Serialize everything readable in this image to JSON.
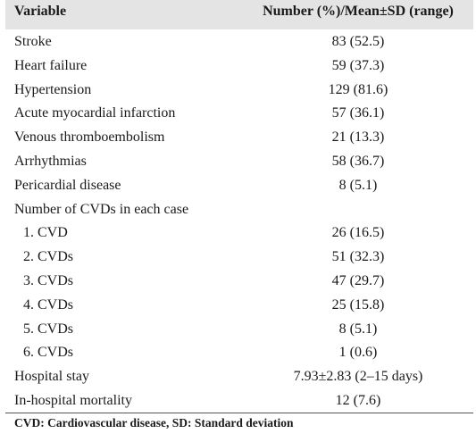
{
  "table": {
    "columns": [
      "Variable",
      "Number (%)/Mean±SD (range)"
    ],
    "rows": [
      [
        "Stroke",
        "83 (52.5)"
      ],
      [
        "Heart failure",
        "59 (37.3)"
      ],
      [
        "Hypertension",
        "129 (81.6)"
      ],
      [
        "Acute myocardial infarction",
        "57 (36.1)"
      ],
      [
        "Venous thromboembolism",
        "21 (13.3)"
      ],
      [
        "Arrhythmias",
        "58 (36.7)"
      ],
      [
        "Pericardial disease",
        "8 (5.1)"
      ],
      {
        "label": "Number of CVDs in each case",
        "subrows": [
          [
            "1. CVD",
            "26 (16.5)"
          ],
          [
            "2. CVDs",
            "51 (32.3)"
          ],
          [
            "3. CVDs",
            "47 (29.7)"
          ],
          [
            "4. CVDs",
            "25 (15.8)"
          ],
          [
            "5. CVDs",
            "8 (5.1)"
          ],
          [
            "6. CVDs",
            "1 (0.6)"
          ]
        ]
      },
      [
        "Hospital stay",
        "7.93±2.83 (2–15 days)"
      ],
      [
        "In-hospital mortality",
        "12 (7.6)"
      ]
    ],
    "footnote": "CVD: Cardiovascular disease, SD: Standard deviation"
  }
}
